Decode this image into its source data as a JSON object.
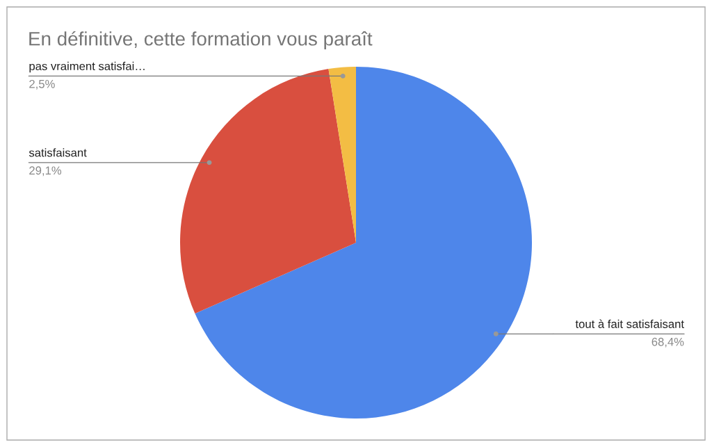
{
  "chart_data": {
    "type": "pie",
    "title": "En définitive, cette formation vous paraît",
    "categories": [
      "tout à fait satisfaisant",
      "satisfaisant",
      "pas vraiment satisfai…"
    ],
    "values": [
      68.4,
      29.1,
      2.5
    ],
    "colors": [
      "#4e86ea",
      "#d94f3f",
      "#f3bd44"
    ],
    "value_labels": [
      "68,4%",
      "29,1%",
      "2,5%"
    ]
  }
}
